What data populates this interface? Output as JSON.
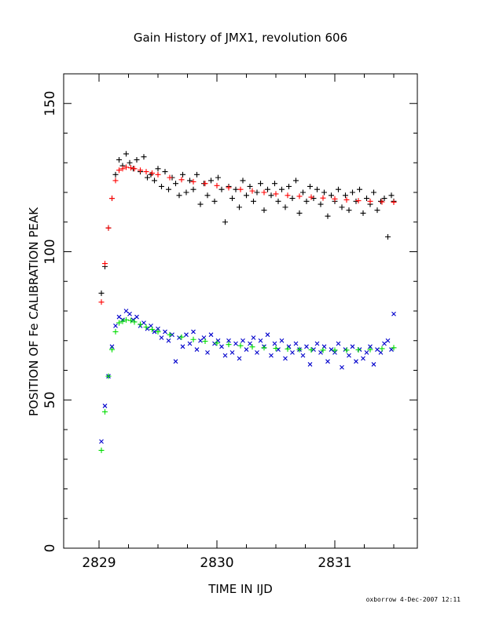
{
  "chart_data": {
    "type": "scatter",
    "title": "Gain History of JMX1, revolution 606",
    "xlabel": "TIME IN IJD",
    "ylabel": "POSITION OF Fe CALIBRATION PEAK",
    "xlim": [
      2828.7,
      2831.7
    ],
    "ylim": [
      0,
      160
    ],
    "xticks": [
      2829,
      2830,
      2831
    ],
    "yticks": [
      0,
      50,
      100,
      150
    ],
    "grid": false,
    "colors": {
      "upper_points": "#000000",
      "upper_fit": "#ff0000",
      "lower_points": "#0000cc",
      "lower_fit": "#00dd00"
    },
    "series": [
      {
        "marker": "plus",
        "color": "#000000",
        "x": [
          2829.02,
          2829.05,
          2829.08,
          2829.11,
          2829.14,
          2829.17,
          2829.2,
          2829.23,
          2829.26,
          2829.29,
          2829.32,
          2829.35,
          2829.38,
          2829.41,
          2829.44,
          2829.47,
          2829.5,
          2829.53,
          2829.56,
          2829.59,
          2829.62,
          2829.65,
          2829.68,
          2829.71,
          2829.74,
          2829.77,
          2829.8,
          2829.83,
          2829.86,
          2829.89,
          2829.92,
          2829.95,
          2829.98,
          2830.01,
          2830.04,
          2830.07,
          2830.1,
          2830.13,
          2830.16,
          2830.19,
          2830.22,
          2830.25,
          2830.28,
          2830.31,
          2830.34,
          2830.37,
          2830.4,
          2830.43,
          2830.46,
          2830.49,
          2830.52,
          2830.55,
          2830.58,
          2830.61,
          2830.64,
          2830.67,
          2830.7,
          2830.73,
          2830.76,
          2830.79,
          2830.82,
          2830.85,
          2830.88,
          2830.91,
          2830.94,
          2830.97,
          2831.0,
          2831.03,
          2831.06,
          2831.09,
          2831.12,
          2831.15,
          2831.18,
          2831.21,
          2831.24,
          2831.27,
          2831.3,
          2831.33,
          2831.36,
          2831.39,
          2831.42,
          2831.45,
          2831.48,
          2831.5
        ],
        "y": [
          86,
          95,
          108,
          118,
          126,
          131,
          129,
          133,
          130,
          128,
          131,
          127,
          132,
          125,
          126,
          124,
          128,
          122,
          127,
          121,
          125,
          123,
          119,
          126,
          120,
          124,
          121,
          126,
          116,
          123,
          119,
          124,
          117,
          125,
          121,
          110,
          122,
          118,
          121,
          115,
          124,
          119,
          122,
          117,
          120,
          123,
          114,
          121,
          119,
          123,
          117,
          121,
          115,
          122,
          118,
          124,
          113,
          120,
          117,
          122,
          118,
          121,
          116,
          120,
          112,
          119,
          117,
          121,
          115,
          119,
          114,
          120,
          117,
          121,
          113,
          118,
          116,
          120,
          114,
          117,
          118,
          105,
          119,
          117
        ]
      },
      {
        "marker": "plus",
        "color": "#ff0000",
        "x": [
          2829.02,
          2829.05,
          2829.08,
          2829.11,
          2829.14,
          2829.17,
          2829.2,
          2829.23,
          2829.27,
          2829.3,
          2829.35,
          2829.4,
          2829.45,
          2829.5,
          2829.6,
          2829.7,
          2829.8,
          2829.9,
          2830.0,
          2830.1,
          2830.2,
          2830.3,
          2830.4,
          2830.5,
          2830.6,
          2830.7,
          2830.8,
          2830.9,
          2831.0,
          2831.1,
          2831.2,
          2831.3,
          2831.4,
          2831.5
        ],
        "y": [
          83,
          96,
          108,
          118,
          124,
          127.5,
          128,
          128.5,
          128.3,
          128,
          127.5,
          127,
          126.5,
          126,
          125,
          124.3,
          123.6,
          123,
          122.3,
          121.6,
          121,
          120.5,
          120,
          119.5,
          119,
          118.7,
          118.4,
          118.1,
          117.8,
          117.5,
          117.2,
          117,
          116.8,
          116.7
        ]
      },
      {
        "marker": "x",
        "color": "#0000cc",
        "x": [
          2829.02,
          2829.05,
          2829.08,
          2829.11,
          2829.14,
          2829.17,
          2829.2,
          2829.23,
          2829.26,
          2829.29,
          2829.32,
          2829.35,
          2829.38,
          2829.41,
          2829.44,
          2829.47,
          2829.5,
          2829.53,
          2829.56,
          2829.59,
          2829.62,
          2829.65,
          2829.68,
          2829.71,
          2829.74,
          2829.77,
          2829.8,
          2829.83,
          2829.86,
          2829.89,
          2829.92,
          2829.95,
          2829.98,
          2830.01,
          2830.04,
          2830.07,
          2830.1,
          2830.13,
          2830.16,
          2830.19,
          2830.22,
          2830.25,
          2830.28,
          2830.31,
          2830.34,
          2830.37,
          2830.4,
          2830.43,
          2830.46,
          2830.49,
          2830.52,
          2830.55,
          2830.58,
          2830.61,
          2830.64,
          2830.67,
          2830.7,
          2830.73,
          2830.76,
          2830.79,
          2830.82,
          2830.85,
          2830.88,
          2830.91,
          2830.94,
          2830.97,
          2831.0,
          2831.03,
          2831.06,
          2831.09,
          2831.12,
          2831.15,
          2831.18,
          2831.21,
          2831.24,
          2831.27,
          2831.3,
          2831.33,
          2831.36,
          2831.39,
          2831.42,
          2831.45,
          2831.48,
          2831.5
        ],
        "y": [
          36,
          48,
          58,
          68,
          75,
          78,
          77,
          80,
          79,
          77,
          78,
          75,
          76,
          74,
          75,
          73,
          74,
          71,
          73,
          70,
          72,
          63,
          71,
          68,
          72,
          69,
          73,
          67,
          70,
          71,
          66,
          72,
          69,
          70,
          68,
          65,
          70,
          66,
          69,
          64,
          70,
          67,
          69,
          71,
          66,
          70,
          68,
          72,
          65,
          69,
          67,
          70,
          64,
          68,
          66,
          69,
          67,
          65,
          68,
          62,
          67,
          69,
          66,
          68,
          63,
          67,
          66,
          69,
          61,
          67,
          65,
          68,
          63,
          67,
          64,
          66,
          68,
          62,
          67,
          66,
          69,
          70,
          67,
          79
        ]
      },
      {
        "marker": "plus",
        "color": "#00dd00",
        "x": [
          2829.02,
          2829.05,
          2829.08,
          2829.11,
          2829.14,
          2829.17,
          2829.2,
          2829.23,
          2829.27,
          2829.3,
          2829.35,
          2829.4,
          2829.45,
          2829.5,
          2829.6,
          2829.7,
          2829.8,
          2829.9,
          2830.0,
          2830.1,
          2830.2,
          2830.3,
          2830.4,
          2830.5,
          2830.6,
          2830.7,
          2830.8,
          2830.9,
          2831.0,
          2831.1,
          2831.2,
          2831.3,
          2831.4,
          2831.5
        ],
        "y": [
          33,
          46,
          58,
          67,
          73,
          76,
          76.5,
          77,
          76.8,
          76.3,
          75.5,
          74.6,
          73.8,
          73,
          72,
          71.2,
          70.4,
          69.8,
          69.2,
          68.7,
          68.3,
          67.9,
          67.6,
          67.4,
          67.2,
          67,
          66.9,
          66.8,
          66.8,
          66.8,
          66.9,
          67,
          67.3,
          67.6
        ]
      }
    ],
    "footer": "oxborrow   4-Dec-2007 12:11"
  }
}
